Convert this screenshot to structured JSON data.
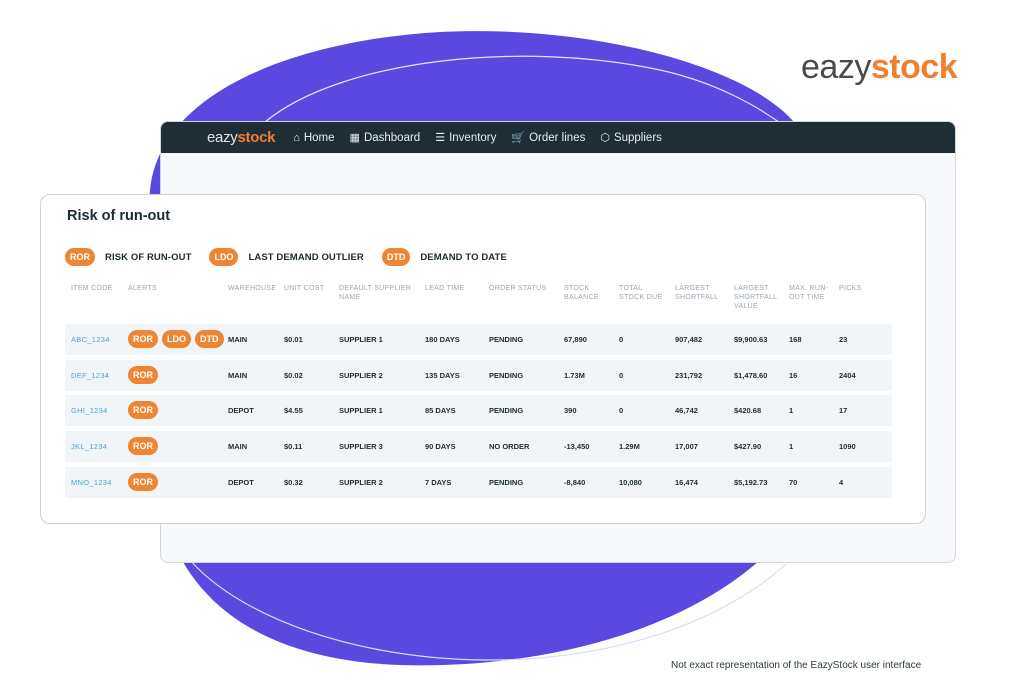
{
  "brand": {
    "logo_ez": "eazy",
    "logo_stock": "stock",
    "accent_color": "#f07f2e",
    "blob_color": "#5b48e0"
  },
  "nav": {
    "logo_ez": "eazy",
    "logo_stock": "stock",
    "items": [
      {
        "icon": "home-icon",
        "label": "Home"
      },
      {
        "icon": "dashboard-icon",
        "label": "Dashboard"
      },
      {
        "icon": "list-icon",
        "label": "Inventory"
      },
      {
        "icon": "cart-icon",
        "label": "Order lines"
      },
      {
        "icon": "box-icon",
        "label": "Suppliers"
      }
    ]
  },
  "card": {
    "title": "Risk of run-out",
    "legend": [
      {
        "badge": "ROR",
        "label": "RISK OF RUN-OUT"
      },
      {
        "badge": "LDO",
        "label": "LAST DEMAND OUTLIER"
      },
      {
        "badge": "DTD",
        "label": "DEMAND TO DATE"
      }
    ],
    "columns": [
      "ITEM CODE",
      "ALERTS",
      "WAREHOUSE",
      "UNIT COST",
      "DEFAULT SUPPLIER NAME",
      "LEAD TIME",
      "ORDER STATUS",
      "STOCK BALANCE",
      "TOTAL STOCK DUE",
      "LARGEST SHORTFALL",
      "LARGEST SHORTFALL VALUE",
      "MAX. RUN-OUT TIME",
      "PICKS"
    ],
    "rows": [
      {
        "code": "ABC_1234",
        "alerts": [
          "ROR",
          "LDO",
          "DTD"
        ],
        "warehouse": "MAIN",
        "unit_cost": "$0.01",
        "supplier": "SUPPLIER 1",
        "lead_time": "180 DAYS",
        "status": "PENDING",
        "stock_balance": "67,890",
        "stock_due": "0",
        "shortfall": "907,482",
        "shortfall_value": "$9,900.63",
        "run_out": "168",
        "picks": "23"
      },
      {
        "code": "DEF_1234",
        "alerts": [
          "ROR"
        ],
        "warehouse": "MAIN",
        "unit_cost": "$0.02",
        "supplier": "SUPPLIER 2",
        "lead_time": "135 DAYS",
        "status": "PENDING",
        "stock_balance": "1.73M",
        "stock_due": "0",
        "shortfall": "231,792",
        "shortfall_value": "$1,478.60",
        "run_out": "16",
        "picks": "2404"
      },
      {
        "code": "GHI_1234",
        "alerts": [
          "ROR"
        ],
        "warehouse": "DEPOT",
        "unit_cost": "$4.55",
        "supplier": "SUPPLIER 1",
        "lead_time": "85 DAYS",
        "status": "PENDING",
        "stock_balance": "390",
        "stock_due": "0",
        "shortfall": "46,742",
        "shortfall_value": "$420.68",
        "run_out": "1",
        "picks": "17"
      },
      {
        "code": "JKL_1234",
        "alerts": [
          "ROR"
        ],
        "warehouse": "MAIN",
        "unit_cost": "$0.11",
        "supplier": "SUPPLIER 3",
        "lead_time": "90 DAYS",
        "status": "NO ORDER",
        "stock_balance": "-13,450",
        "stock_due": "1.29M",
        "shortfall": "17,007",
        "shortfall_value": "$427.90",
        "run_out": "1",
        "picks": "1090"
      },
      {
        "code": "MNO_1234",
        "alerts": [
          "ROR"
        ],
        "warehouse": "DEPOT",
        "unit_cost": "$0.32",
        "supplier": "SUPPLIER 2",
        "lead_time": "7 DAYS",
        "status": "PENDING",
        "stock_balance": "-8,840",
        "stock_due": "10,080",
        "shortfall": "16,474",
        "shortfall_value": "$5,192.73",
        "run_out": "70",
        "picks": "4"
      }
    ]
  },
  "disclaimer": "Not exact representation of the EazyStock user interface"
}
